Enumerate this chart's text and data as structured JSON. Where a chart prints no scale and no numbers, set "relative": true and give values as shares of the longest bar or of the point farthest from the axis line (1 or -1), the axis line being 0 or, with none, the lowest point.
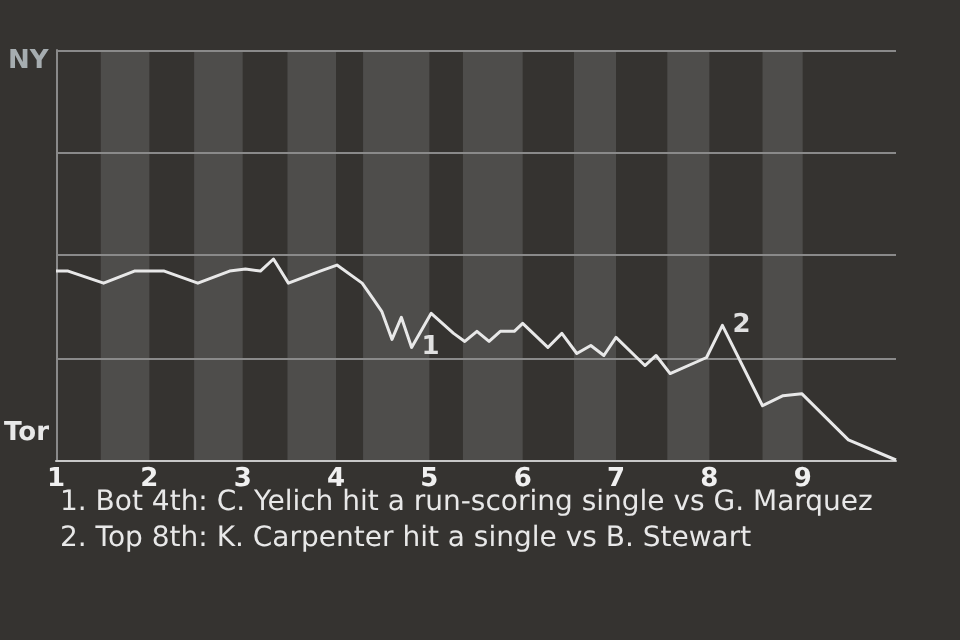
{
  "chart_data": {
    "type": "line",
    "x": [
      1,
      1.13,
      1.51,
      1.84,
      2.16,
      2.52,
      2.86,
      3.03,
      3.19,
      3.33,
      3.49,
      3.83,
      4.01,
      4.28,
      4.4,
      4.49,
      4.6,
      4.7,
      4.81,
      5.02,
      5.26,
      5.38,
      5.51,
      5.64,
      5.76,
      5.91,
      6,
      6.27,
      6.42,
      6.58,
      6.73,
      6.87,
      7,
      7.31,
      7.43,
      7.58,
      7.97,
      8.14,
      8.57,
      8.79,
      8.99,
      9.49,
      10
    ],
    "series": [
      {
        "color": "#e8e8e8",
        "values": [
          0.94,
          0.94,
          0.88,
          0.94,
          0.94,
          0.88,
          0.94,
          0.95,
          0.94,
          1,
          0.88,
          0.94,
          0.97,
          0.88,
          0.8,
          0.74,
          0.6,
          0.71,
          0.56,
          0.73,
          0.63,
          0.59,
          0.64,
          0.59,
          0.64,
          0.64,
          0.68,
          0.56,
          0.63,
          0.53,
          0.57,
          0.52,
          0.61,
          0.47,
          0.52,
          0.43,
          0.51,
          0.67,
          0.27,
          0.32,
          0.33,
          0.1,
          0
        ]
      }
    ],
    "relative": true,
    "xlim": [
      1,
      10
    ],
    "xticks": [
      1,
      2,
      3,
      4,
      5,
      6,
      7,
      8,
      9
    ],
    "ref_lines": [
      {
        "axis": "y",
        "value": 0.51,
        "color": "#8a8a8a"
      },
      {
        "axis": "y",
        "value": 1.02,
        "color": "#8a8a8a"
      },
      {
        "axis": "y",
        "value": 1.53,
        "color": "#8a8a8a"
      },
      {
        "axis": "y",
        "value": 2.04,
        "color": "#8a8a8a"
      }
    ],
    "marker": "none",
    "bands": [
      {
        "axis": "x",
        "from": 1.48,
        "to": 2,
        "color": "#4e4d4b"
      },
      {
        "axis": "x",
        "from": 2.48,
        "to": 3,
        "color": "#4e4d4b"
      },
      {
        "axis": "x",
        "from": 3.48,
        "to": 4,
        "color": "#4e4d4b"
      },
      {
        "axis": "x",
        "from": 4.29,
        "to": 5,
        "color": "#4e4d4b"
      },
      {
        "axis": "x",
        "from": 5.36,
        "to": 6,
        "color": "#4e4d4b"
      },
      {
        "axis": "x",
        "from": 6.55,
        "to": 7,
        "color": "#4e4d4b"
      },
      {
        "axis": "x",
        "from": 7.55,
        "to": 8,
        "color": "#4e4d4b"
      },
      {
        "axis": "x",
        "from": 8.57,
        "to": 9,
        "color": "#4e4d4b"
      }
    ],
    "annotations": [
      "NY",
      "Tor",
      {
        "text": "1",
        "x": 4.81,
        "y": 0.56
      },
      {
        "text": "2",
        "x": 8.14,
        "y": 0.67
      },
      "1. Bot 4th: C. Yelich hit a run-scoring single vs G. Marquez",
      "2. Top 8th: K. Carpenter hit a single vs B. Stewart"
    ]
  }
}
